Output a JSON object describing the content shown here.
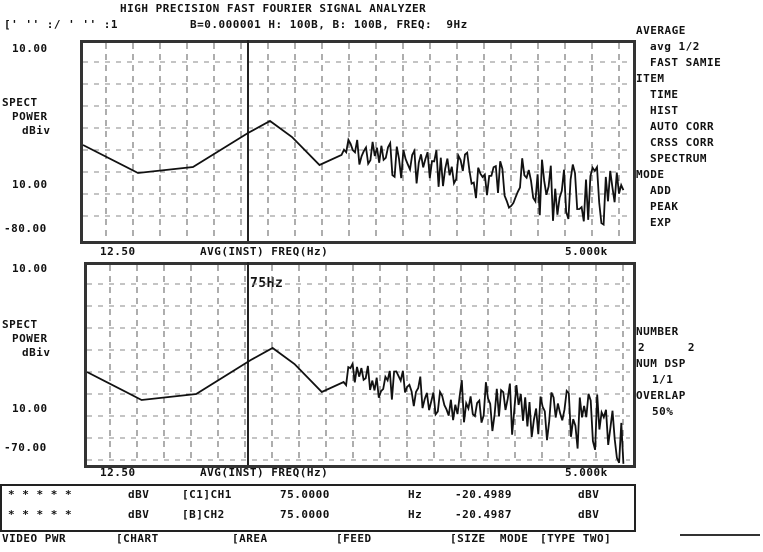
{
  "header": {
    "title": "HIGH PRECISION FAST FOURIER SIGNAL ANALYZER",
    "status_left": "[' '' :/ ' '' :1",
    "status": "B=0.000001 H: 100B, B: 100B, FREQ:  9Hz"
  },
  "top_plot": {
    "ymax": "10.00",
    "ylabel1": "SPECT",
    "ylabel2": "POWER",
    "ylabel3": "dBiv",
    "ymid": "10.00",
    "ymin": "-80.00",
    "xmin": "12.50",
    "xlabel": "AVG(INST) FREQ(Hz)",
    "xmax": "5.000k"
  },
  "bottom_plot": {
    "ymax": "10.00",
    "ylabel1": "SPECT",
    "ylabel2": "POWER",
    "ylabel3": "dBiv",
    "ymid": "10.00",
    "ymin": "-70.00",
    "marker": "75Hz",
    "xmin": "12.50",
    "xlabel": "AVG(INST) FREQ(Hz)",
    "xmax": "5.000k"
  },
  "menu": [
    "AVERAGE",
    "avg 1/2",
    "FAST SAMIE",
    "ITEM",
    "TIME",
    "HIST",
    "AUTO CORR",
    "CRSS CORR",
    "SPECTRUM",
    "MODE",
    "ADD",
    "PEAK",
    "EXP",
    "NUMBER",
    "2      2",
    "NUM DSP",
    "1/1",
    "OVERLAP",
    "50%"
  ],
  "readout": [
    {
      "marks": "* * * * *",
      "unit": "dBV",
      "chan": "[C1]CH1",
      "freq": "75.0000",
      "funit": "Hz",
      "level": "-20.4989",
      "lunit": "dBV"
    },
    {
      "marks": "* * * * *",
      "unit": "dBV",
      "chan": "[B]CH2",
      "freq": "75.0000",
      "funit": "Hz",
      "level": "-20.4987",
      "lunit": "dBV"
    }
  ],
  "softkeys": [
    "VIDEO PWR",
    "[CHART",
    "[AREA",
    "[FEED",
    "[SIZE  MODE",
    "[TYPE TWO]"
  ]
}
